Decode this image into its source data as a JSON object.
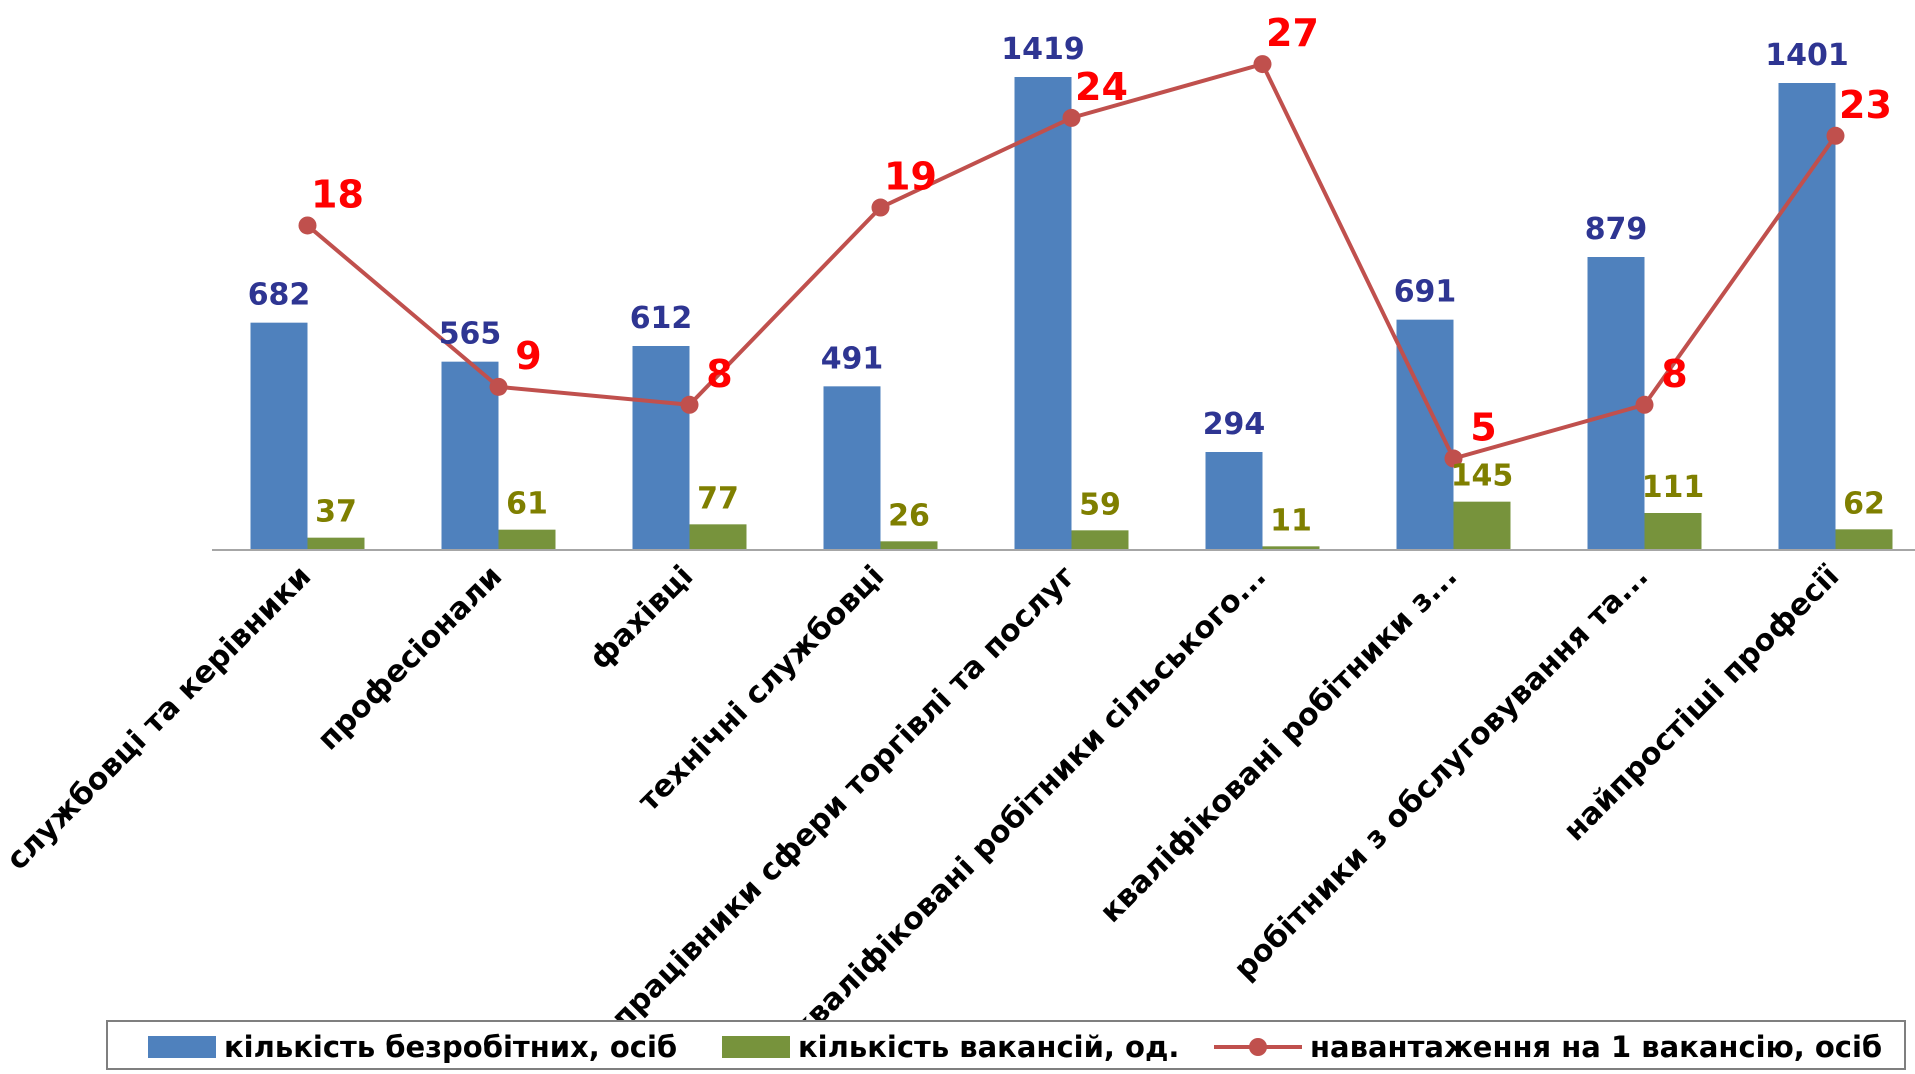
{
  "chart_data": {
    "type": "bar",
    "categories": [
      "службовці та керівники",
      "професіонали",
      "фахівці",
      "технічні службовці",
      "працівники сфери торгівлі та послуг",
      "кваліфіковані робітники сільського...",
      "кваліфіковані робітники з...",
      "робітники з обслуговування та...",
      "найпростіші професії"
    ],
    "series": [
      {
        "name": "кількість безробітних, осіб",
        "type": "bar",
        "color": "#4f81bd",
        "label_color": "#2e3592",
        "values": [
          682,
          565,
          612,
          491,
          1419,
          294,
          691,
          879,
          1401
        ]
      },
      {
        "name": "кількість вакансій, од.",
        "type": "bar",
        "color": "#77933c",
        "label_color": "#7f7f00",
        "values": [
          37,
          61,
          77,
          26,
          59,
          11,
          145,
          111,
          62
        ]
      },
      {
        "name": "навантаження на 1 вакансію, осіб",
        "type": "line",
        "color": "#c0504d",
        "label_color": "#ff0000",
        "values": [
          18,
          9,
          8,
          19,
          24,
          27,
          5,
          8,
          23
        ]
      }
    ],
    "title": "",
    "xlabel": "",
    "ylabel": "",
    "ylim": [
      0,
      1500
    ],
    "secondary_ylim": [
      0,
      32
    ],
    "grid": false,
    "legend": "bottom"
  }
}
